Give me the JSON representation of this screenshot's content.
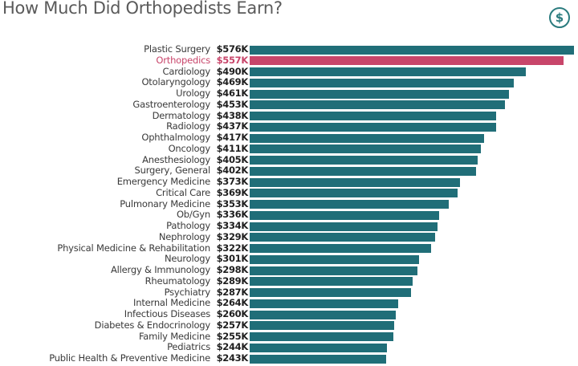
{
  "header": {
    "title": "How Much Did Orthopedists Earn?",
    "icon": "dollar-circle-icon"
  },
  "colors": {
    "bar": "#206e78",
    "highlight": "#c8456a",
    "title": "#5a5a5a"
  },
  "chart_data": {
    "type": "bar",
    "orientation": "horizontal",
    "title": "How Much Did Orthopedists Earn?",
    "xlabel": "",
    "ylabel": "",
    "unit": "$K",
    "highlighted": "Orthopedics",
    "categories": [
      "Plastic Surgery",
      "Orthopedics",
      "Cardiology",
      "Otolaryngology",
      "Urology",
      "Gastroenterology",
      "Dermatology",
      "Radiology",
      "Ophthalmology",
      "Oncology",
      "Anesthesiology",
      "Surgery, General",
      "Emergency Medicine",
      "Critical Care",
      "Pulmonary Medicine",
      "Ob/Gyn",
      "Pathology",
      "Nephrology",
      "Physical Medicine & Rehabilitation",
      "Neurology",
      "Allergy & Immunology",
      "Rheumatology",
      "Psychiatry",
      "Internal Medicine",
      "Infectious Diseases",
      "Diabetes & Endocrinology",
      "Family Medicine",
      "Pediatrics",
      "Public Health & Preventive Medicine"
    ],
    "values": [
      576,
      557,
      490,
      469,
      461,
      453,
      438,
      437,
      417,
      411,
      405,
      402,
      373,
      369,
      353,
      336,
      334,
      329,
      322,
      301,
      298,
      289,
      287,
      264,
      260,
      257,
      255,
      244,
      243
    ],
    "labels": [
      "$576K",
      "$557K",
      "$490K",
      "$469K",
      "$461K",
      "$453K",
      "$438K",
      "$437K",
      "$417K",
      "$411K",
      "$405K",
      "$402K",
      "$373K",
      "$369K",
      "$353K",
      "$336K",
      "$334K",
      "$329K",
      "$322K",
      "$301K",
      "$298K",
      "$289K",
      "$287K",
      "$264K",
      "$260K",
      "$257K",
      "$255K",
      "$244K",
      "$243K"
    ],
    "grid": false,
    "legend": false
  }
}
